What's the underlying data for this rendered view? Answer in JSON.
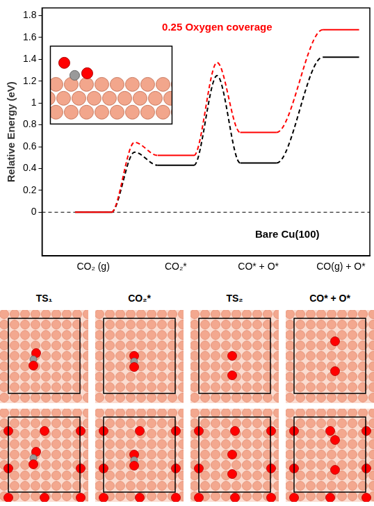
{
  "chart_data": {
    "type": "line",
    "y_label": "Relative Energy (eV)",
    "categories": [
      "CO₂ (g)",
      "CO₂*",
      "CO* + O*",
      "CO(g) + O*"
    ],
    "ylim": [
      -0.4,
      1.87
    ],
    "yticks": [
      0,
      0.2,
      0.4,
      0.6,
      0.8,
      1,
      1.2,
      1.4,
      1.6,
      1.8
    ],
    "grid": false,
    "series": [
      {
        "name": "0.25 Oxygen coverage",
        "color": "#ff0000",
        "values": [
          0,
          0.52,
          0.73,
          1.67
        ],
        "transition_states": [
          0.64,
          1.37,
          null
        ]
      },
      {
        "name": "Bare Cu(100)",
        "color": "#000000",
        "values": [
          0,
          0.43,
          0.45,
          1.42
        ],
        "transition_states": [
          0.55,
          1.25,
          null
        ]
      }
    ]
  },
  "structures": {
    "columns": [
      "TS₁",
      "CO₂*",
      "TS₂",
      "CO* + O*"
    ]
  }
}
